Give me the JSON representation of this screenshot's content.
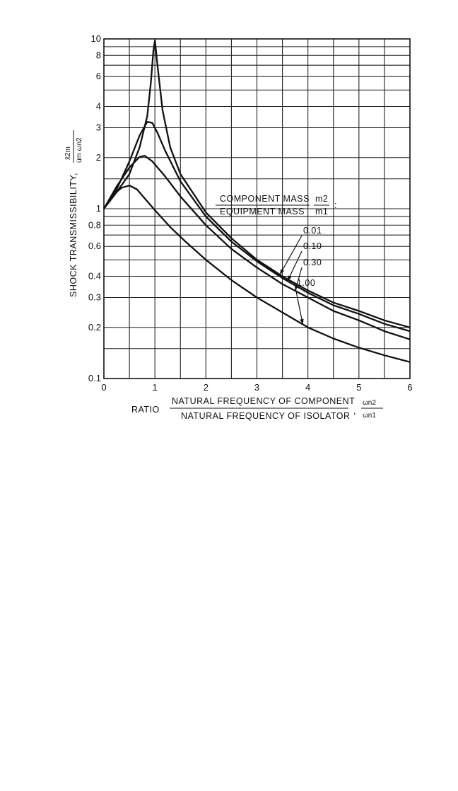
{
  "chart_data": {
    "type": "line",
    "title": "",
    "ylabel": "SHOCK TRANSMISSIBILITY",
    "ylabel_symbol": {
      "num": "x̄2m",
      "den": "u̇m ωn2"
    },
    "xlabel": {
      "prefix": "RATIO",
      "num": "NATURAL FREQUENCY OF COMPONENT",
      "den": "NATURAL FREQUENCY OF ISOLATOR",
      "sym_num": "ωn2",
      "sym_den": "ωn1"
    },
    "xlim": [
      0,
      6
    ],
    "ylim": [
      0.1,
      10
    ],
    "yscale": "log",
    "grid": true,
    "x_ticks": [
      "0",
      "1",
      "2",
      "3",
      "4",
      "5",
      "6"
    ],
    "y_ticks": [
      {
        "value": 0.1,
        "label": "0.1"
      },
      {
        "value": 0.2,
        "label": "0.2"
      },
      {
        "value": 0.3,
        "label": "0.3"
      },
      {
        "value": 0.4,
        "label": "0.4"
      },
      {
        "value": 0.6,
        "label": "0.6"
      },
      {
        "value": 0.8,
        "label": "0.8"
      },
      {
        "value": 1,
        "label": "1"
      },
      {
        "value": 2,
        "label": "2"
      },
      {
        "value": 3,
        "label": "3"
      },
      {
        "value": 4,
        "label": "4"
      },
      {
        "value": 6,
        "label": "6"
      },
      {
        "value": 8,
        "label": "8"
      },
      {
        "value": 10,
        "label": "10"
      }
    ],
    "legend": {
      "title_num": "COMPONENT MASS",
      "title_den": "EQUIPMENT MASS",
      "sym_num": "m2",
      "sym_den": "m1",
      "colon": ":"
    },
    "series": [
      {
        "name": "0.01",
        "x": [
          0,
          0.25,
          0.5,
          0.7,
          0.85,
          0.92,
          0.97,
          1.0,
          1.05,
          1.15,
          1.3,
          1.5,
          2,
          2.5,
          3,
          3.5,
          4,
          4.5,
          5,
          5.5,
          6
        ],
        "y": [
          1.0,
          1.25,
          1.6,
          2.3,
          3.5,
          5.5,
          8.5,
          9.8,
          7.0,
          3.8,
          2.3,
          1.6,
          0.95,
          0.67,
          0.5,
          0.4,
          0.33,
          0.28,
          0.25,
          0.22,
          0.2
        ]
      },
      {
        "name": "0.10",
        "x": [
          0,
          0.25,
          0.5,
          0.7,
          0.85,
          0.95,
          1.05,
          1.2,
          1.5,
          2,
          2.5,
          3,
          3.5,
          4,
          4.5,
          5,
          5.5,
          6
        ],
        "y": [
          1.0,
          1.3,
          1.9,
          2.7,
          3.25,
          3.2,
          2.8,
          2.2,
          1.45,
          0.9,
          0.64,
          0.49,
          0.39,
          0.32,
          0.27,
          0.24,
          0.21,
          0.19
        ]
      },
      {
        "name": "0.30",
        "x": [
          0,
          0.25,
          0.5,
          0.7,
          0.8,
          0.95,
          1.2,
          1.5,
          2,
          2.5,
          3,
          3.5,
          4,
          4.5,
          5,
          5.5,
          6
        ],
        "y": [
          1.0,
          1.35,
          1.75,
          2.02,
          2.05,
          1.9,
          1.55,
          1.18,
          0.8,
          0.58,
          0.45,
          0.36,
          0.3,
          0.25,
          0.22,
          0.19,
          0.17
        ]
      },
      {
        "name": "1.00",
        "x": [
          0,
          0.2,
          0.35,
          0.5,
          0.65,
          0.8,
          1.0,
          1.3,
          1.6,
          2,
          2.5,
          3,
          3.5,
          4,
          4.5,
          5,
          5.5,
          6
        ],
        "y": [
          1.0,
          1.22,
          1.33,
          1.37,
          1.3,
          1.15,
          0.98,
          0.78,
          0.64,
          0.5,
          0.38,
          0.3,
          0.245,
          0.2,
          0.172,
          0.152,
          0.137,
          0.125
        ]
      }
    ]
  }
}
